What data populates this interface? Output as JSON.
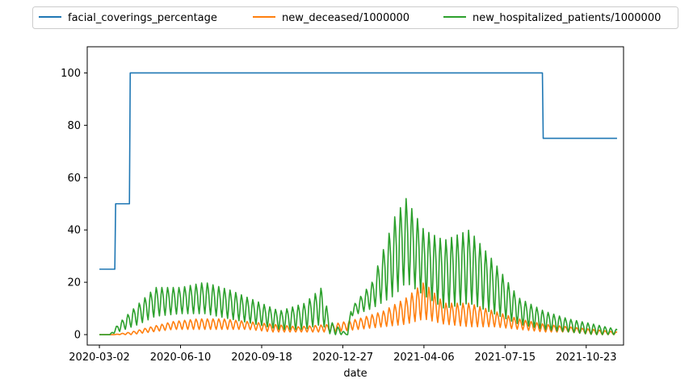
{
  "chart_data": {
    "type": "line",
    "xlabel": "date",
    "ylabel": "",
    "x_tick_labels": [
      "2020-03-02",
      "2020-06-10",
      "2020-09-18",
      "2020-12-27",
      "2021-04-06",
      "2021-07-15",
      "2021-10-23"
    ],
    "x_range": [
      "2020-02-16",
      "2021-12-08"
    ],
    "ylim": [
      -4,
      110
    ],
    "y_ticks": [
      0,
      20,
      40,
      60,
      80,
      100
    ],
    "grid": false,
    "legend_position": "top-center",
    "series": [
      {
        "name": "facial_coverings_percentage",
        "color": "#1f77b4",
        "kind": "step",
        "points": [
          [
            "2020-03-02",
            25
          ],
          [
            "2020-03-21",
            25
          ],
          [
            "2020-03-22",
            50
          ],
          [
            "2020-04-08",
            50
          ],
          [
            "2020-04-09",
            100
          ],
          [
            "2021-08-30",
            100
          ],
          [
            "2021-08-31",
            75
          ],
          [
            "2021-11-30",
            75
          ]
        ]
      },
      {
        "name": "new_deceased/1000000",
        "color": "#ff7f0e",
        "kind": "weekly",
        "envelope": [
          [
            "2020-03-02",
            0,
            0
          ],
          [
            "2020-03-20",
            0,
            0
          ],
          [
            "2020-04-10",
            0,
            1
          ],
          [
            "2020-05-05",
            1,
            3
          ],
          [
            "2020-06-01",
            2,
            5
          ],
          [
            "2020-07-01",
            2,
            6
          ],
          [
            "2020-08-01",
            2,
            6
          ],
          [
            "2020-09-01",
            2,
            5
          ],
          [
            "2020-10-01",
            1,
            4
          ],
          [
            "2020-11-01",
            1,
            3
          ],
          [
            "2020-12-15",
            1,
            4
          ],
          [
            "2021-01-15",
            2,
            6
          ],
          [
            "2021-02-15",
            3,
            9
          ],
          [
            "2021-03-15",
            4,
            14
          ],
          [
            "2021-04-06",
            6,
            20
          ],
          [
            "2021-05-01",
            4,
            12
          ],
          [
            "2021-06-01",
            3,
            12
          ],
          [
            "2021-07-01",
            3,
            9
          ],
          [
            "2021-08-01",
            2,
            6
          ],
          [
            "2021-09-01",
            1,
            4
          ],
          [
            "2021-10-01",
            1,
            3
          ],
          [
            "2021-11-01",
            0,
            2
          ],
          [
            "2021-11-30",
            0,
            1
          ]
        ]
      },
      {
        "name": "new_hospitalized_patients/1000000",
        "color": "#2ca02c",
        "kind": "weekly",
        "envelope": [
          [
            "2020-03-02",
            0,
            0
          ],
          [
            "2020-03-15",
            0,
            0
          ],
          [
            "2020-03-25",
            1,
            4
          ],
          [
            "2020-04-20",
            4,
            12
          ],
          [
            "2020-05-10",
            7,
            18
          ],
          [
            "2020-06-10",
            8,
            18
          ],
          [
            "2020-07-10",
            8,
            20
          ],
          [
            "2020-08-10",
            6,
            17
          ],
          [
            "2020-09-10",
            4,
            13
          ],
          [
            "2020-10-10",
            2,
            9
          ],
          [
            "2020-11-10",
            2,
            12
          ],
          [
            "2020-12-01",
            4,
            18
          ],
          [
            "2020-12-12",
            0,
            5
          ],
          [
            "2021-01-02",
            0,
            0
          ],
          [
            "2021-01-06",
            7,
            10
          ],
          [
            "2021-02-01",
            10,
            20
          ],
          [
            "2021-03-01",
            15,
            45
          ],
          [
            "2021-03-15",
            20,
            52
          ],
          [
            "2021-04-06",
            15,
            40
          ],
          [
            "2021-05-01",
            10,
            36
          ],
          [
            "2021-06-01",
            12,
            40
          ],
          [
            "2021-07-01",
            8,
            28
          ],
          [
            "2021-08-01",
            4,
            14
          ],
          [
            "2021-09-01",
            2,
            9
          ],
          [
            "2021-10-01",
            1,
            6
          ],
          [
            "2021-11-01",
            0,
            4
          ],
          [
            "2021-11-30",
            0,
            2
          ]
        ]
      }
    ]
  }
}
